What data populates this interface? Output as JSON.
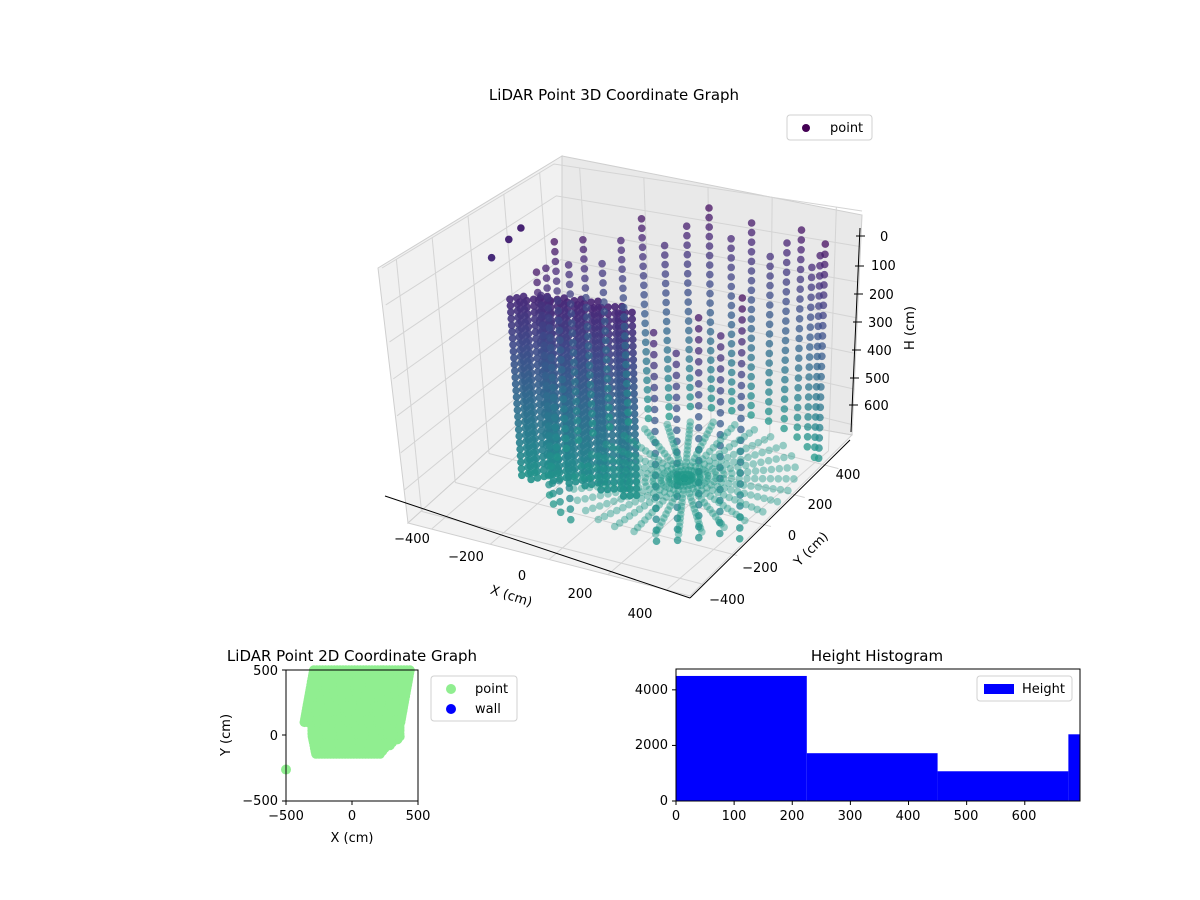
{
  "chart_data": [
    {
      "type": "scatter",
      "projection": "3d",
      "title": "LiDAR Point 3D Coordinate Graph",
      "xlabel": "X (cm)",
      "ylabel": "Y (cm)",
      "zlabel": "H (cm)",
      "x_ticks": [
        "−400",
        "−200",
        "0",
        "200",
        "400"
      ],
      "y_ticks": [
        "−400",
        "−200",
        "0",
        "200",
        "400"
      ],
      "z_ticks": [
        "0",
        "100",
        "200",
        "300",
        "400",
        "500",
        "600"
      ],
      "xlim": [
        -480,
        480
      ],
      "ylim": [
        -480,
        480
      ],
      "zlim": [
        0,
        690
      ],
      "z_inverted": true,
      "grid": true,
      "legend": {
        "position": "top-right",
        "entries": [
          {
            "name": "point",
            "color": "#440154"
          }
        ]
      },
      "colormap": "viridis",
      "series": [
        {
          "name": "point"
        }
      ]
    },
    {
      "type": "scatter",
      "title": "LiDAR Point 2D Coordinate Graph",
      "xlabel": "X (cm)",
      "ylabel": "Y (cm)",
      "x_ticks": [
        "−500",
        "0",
        "500"
      ],
      "y_ticks": [
        "−500",
        "0",
        "500"
      ],
      "xlim": [
        -500,
        500
      ],
      "ylim": [
        -500,
        500
      ],
      "legend": {
        "position": "right",
        "entries": [
          {
            "name": "point",
            "color": "#90ee90"
          },
          {
            "name": "wall",
            "color": "#0000ff"
          }
        ]
      },
      "series": [
        {
          "name": "point",
          "color": "#90ee90"
        },
        {
          "name": "wall",
          "color": "#0000ff"
        }
      ]
    },
    {
      "type": "bar",
      "subtype": "histogram",
      "title": "Height Histogram",
      "x_ticks": [
        "0",
        "100",
        "200",
        "300",
        "400",
        "500",
        "600"
      ],
      "y_ticks": [
        "0",
        "2000",
        "4000"
      ],
      "xlim": [
        0,
        695
      ],
      "ylim": [
        0,
        4750
      ],
      "bins": [
        {
          "from": 0,
          "to": 225,
          "count": 4500
        },
        {
          "from": 225,
          "to": 450,
          "count": 1720
        },
        {
          "from": 450,
          "to": 675,
          "count": 1070
        },
        {
          "from": 675,
          "to": 695,
          "count": 2400
        }
      ],
      "color": "#0000ff",
      "legend": {
        "position": "top-right",
        "entries": [
          {
            "name": "Height",
            "color": "#0000ff"
          }
        ]
      },
      "series": [
        {
          "name": "Height"
        }
      ]
    }
  ]
}
